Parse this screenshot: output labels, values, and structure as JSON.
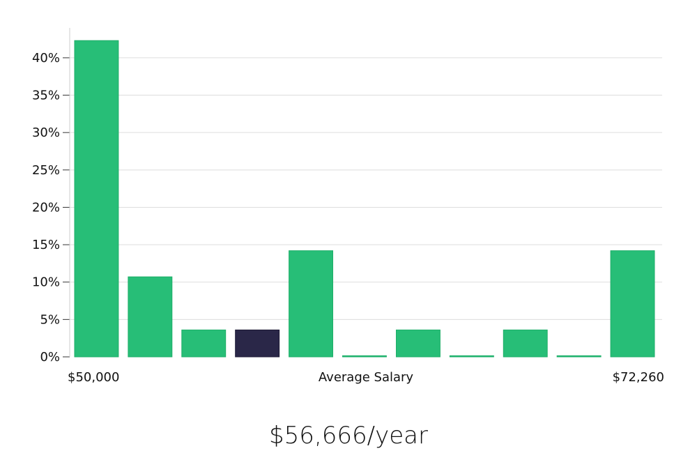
{
  "chart_data": {
    "type": "bar",
    "title": "",
    "xlabel": "Average Salary",
    "x_start_label": "$50,000",
    "x_end_label": "$72,260",
    "ylabel": "",
    "ylim": [
      0,
      44
    ],
    "y_ticks": [
      0,
      5,
      10,
      15,
      20,
      25,
      30,
      35,
      40
    ],
    "y_tick_suffix": "%",
    "grid": true,
    "legend": "none",
    "values": [
      42.3,
      10.7,
      3.6,
      3.6,
      14.2,
      0.15,
      3.6,
      0.15,
      3.6,
      0.15,
      14.2
    ],
    "highlight_index": 3,
    "colors": {
      "bar": "#27be77",
      "bar_edge": "#1eae68",
      "highlight": "#2a2748",
      "grid": "#dddddd",
      "axis": "#cccccc"
    }
  },
  "summary": {
    "salary_text": "$56,666/year"
  }
}
